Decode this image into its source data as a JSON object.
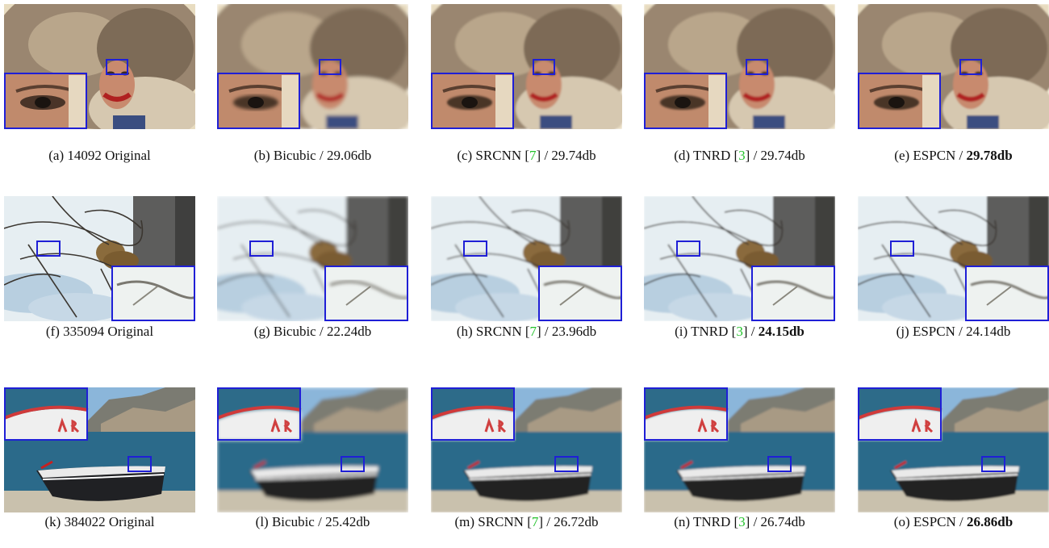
{
  "rows": [
    {
      "scene": "portrait",
      "cells": [
        {
          "label": "(a) 14092 Original",
          "method": "",
          "cite": "",
          "score": "",
          "best": false,
          "blur": 0
        },
        {
          "label": "(b) Bicubic / 29.06db",
          "method": "",
          "cite": "",
          "score": "",
          "best": false,
          "blur": 2
        },
        {
          "label": "(c) SRCNN [",
          "method": "",
          "cite": "7",
          "score": "] / 29.74db",
          "best": false,
          "blur": 1.3
        },
        {
          "label": "(d) TNRD [",
          "method": "",
          "cite": "3",
          "score": "] / 29.74db",
          "best": false,
          "blur": 1.2
        },
        {
          "label": "(e) ESPCN / ",
          "method": "",
          "cite": "",
          "score": "29.78db",
          "best": true,
          "blur": 1
        }
      ]
    },
    {
      "scene": "leopard",
      "cells": [
        {
          "label": "(f) 335094 Original",
          "method": "",
          "cite": "",
          "score": "",
          "best": false,
          "blur": 0
        },
        {
          "label": "(g) Bicubic / 22.24db",
          "method": "",
          "cite": "",
          "score": "",
          "best": false,
          "blur": 2
        },
        {
          "label": "(h) SRCNN [",
          "method": "",
          "cite": "7",
          "score": "] / 23.96db",
          "best": false,
          "blur": 1.3
        },
        {
          "label": "(i) TNRD [",
          "method": "",
          "cite": "3",
          "score": "] / ",
          "extra": "24.15db",
          "best": true,
          "blur": 1.1
        },
        {
          "label": "(j) ESPCN / 24.14db",
          "method": "",
          "cite": "",
          "score": "",
          "best": false,
          "blur": 1.1
        }
      ]
    },
    {
      "scene": "boat",
      "cells": [
        {
          "label": "(k) 384022 Original",
          "method": "",
          "cite": "",
          "score": "",
          "best": false,
          "blur": 0
        },
        {
          "label": "(l) Bicubic / 25.42db",
          "method": "",
          "cite": "",
          "score": "",
          "best": false,
          "blur": 2
        },
        {
          "label": "(m) SRCNN [",
          "method": "",
          "cite": "7",
          "score": "] / 26.72db",
          "best": false,
          "blur": 1.3
        },
        {
          "label": "(n) TNRD [",
          "method": "",
          "cite": "3",
          "score": "] / 26.74db",
          "best": false,
          "blur": 1.2
        },
        {
          "label": "(o) ESPCN / ",
          "method": "",
          "cite": "",
          "score": "26.86db",
          "best": true,
          "blur": 1
        }
      ]
    }
  ],
  "box_color": "#1f1fd6",
  "cite_color": "#22c22a"
}
